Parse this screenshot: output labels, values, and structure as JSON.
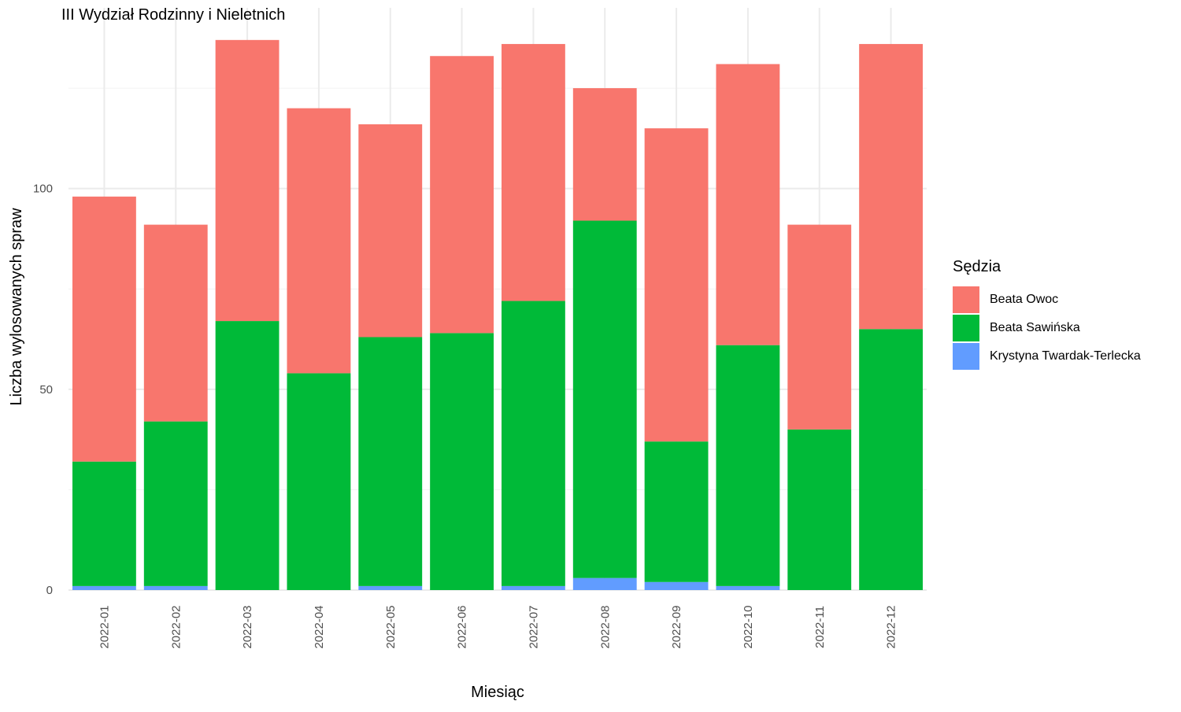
{
  "chart_data": {
    "type": "bar",
    "stacked": true,
    "title": "III Wydział Rodzinny i Nieletnich",
    "xlabel": "Miesiąc",
    "ylabel": "Liczba wylosowanych spraw",
    "ylim": [
      0,
      145
    ],
    "yticks": [
      0,
      50,
      100
    ],
    "grid": true,
    "legend_title": "Sędzia",
    "legend_position": "right",
    "categories": [
      "2022-01",
      "2022-02",
      "2022-03",
      "2022-04",
      "2022-05",
      "2022-06",
      "2022-07",
      "2022-08",
      "2022-09",
      "2022-10",
      "2022-11",
      "2022-12"
    ],
    "series": [
      {
        "name": "Krystyna Twardak-Terlecka",
        "color": "#619CFF",
        "values": [
          1,
          1,
          0,
          0,
          1,
          0,
          1,
          3,
          2,
          1,
          0,
          0
        ]
      },
      {
        "name": "Beata Sawińska",
        "color": "#00BA38",
        "values": [
          31,
          41,
          67,
          54,
          62,
          64,
          71,
          89,
          35,
          60,
          40,
          65
        ]
      },
      {
        "name": "Beata Owoc",
        "color": "#F8766D",
        "values": [
          66,
          49,
          70,
          66,
          53,
          69,
          64,
          33,
          78,
          70,
          51,
          71
        ]
      }
    ],
    "legend_order": [
      "Beata Owoc",
      "Beata Sawińska",
      "Krystyna Twardak-Terlecka"
    ]
  }
}
